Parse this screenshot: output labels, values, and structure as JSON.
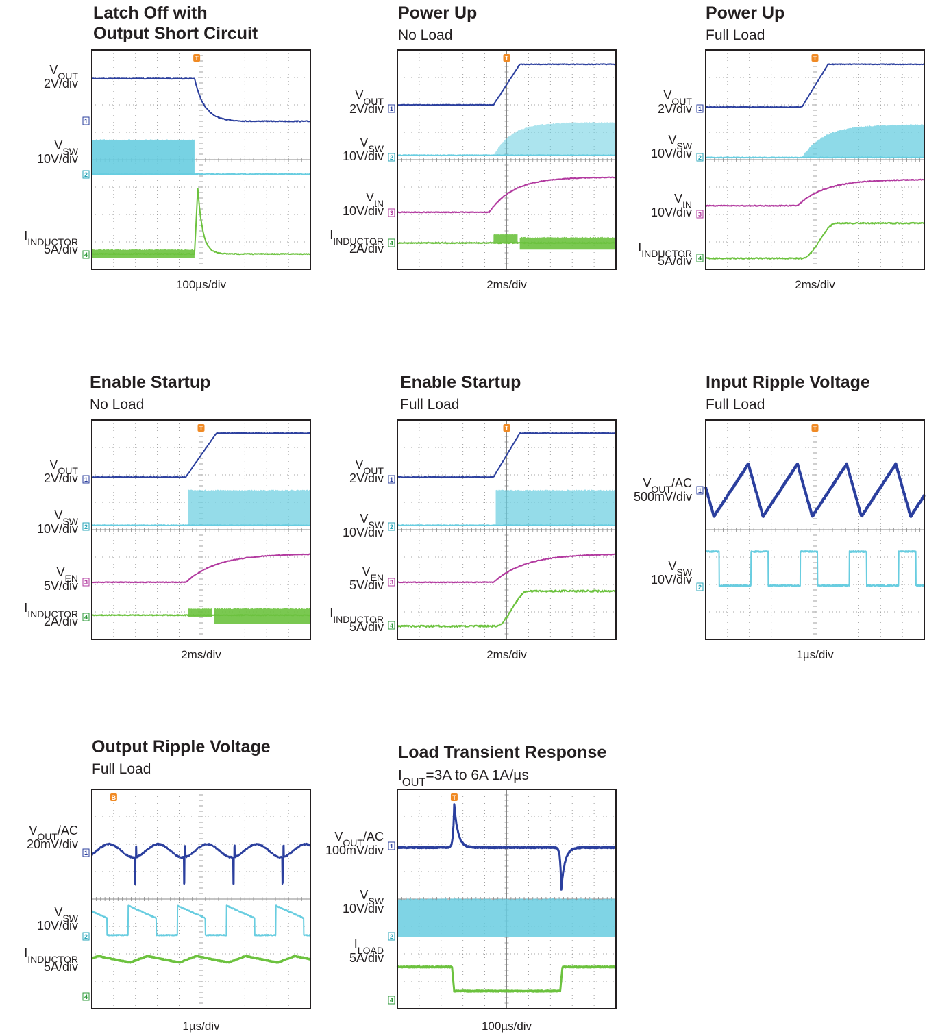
{
  "panels": [
    {
      "title": [
        "Latch Off with",
        "Output Short Circuit"
      ],
      "trigger": "T",
      "timebase": "100µs/div",
      "channels": [
        {
          "name": "V",
          "sub": "OUT",
          "scale": "2V/div",
          "ch": "1"
        },
        {
          "name": "V",
          "sub": "SW",
          "scale": "10V/div",
          "ch": "2"
        },
        {
          "name": "I",
          "sub": "INDUCTOR",
          "scale": "5A/div",
          "ch": "4"
        }
      ]
    },
    {
      "title": [
        "Power Up"
      ],
      "subtitle": [
        "No Load"
      ],
      "trigger": "T",
      "timebase": "2ms/div",
      "channels": [
        {
          "name": "V",
          "sub": "OUT",
          "scale": "2V/div",
          "ch": "1"
        },
        {
          "name": "V",
          "sub": "SW",
          "scale": "10V/div",
          "ch": "2"
        },
        {
          "name": "V",
          "sub": "IN",
          "scale": "10V/div",
          "ch": "3"
        },
        {
          "name": "I",
          "sub": "INDUCTOR",
          "scale": "2A/div",
          "ch": "4"
        }
      ]
    },
    {
      "title": [
        "Power Up"
      ],
      "subtitle": [
        "Full Load"
      ],
      "trigger": "T",
      "timebase": "2ms/div",
      "channels": [
        {
          "name": "V",
          "sub": "OUT",
          "scale": "2V/div",
          "ch": "1"
        },
        {
          "name": "V",
          "sub": "SW",
          "scale": "10V/div",
          "ch": "2"
        },
        {
          "name": "V",
          "sub": "IN",
          "scale": "10V/div",
          "ch": "3"
        },
        {
          "name": "I",
          "sub": "INDUCTOR",
          "scale": "5A/div",
          "ch": "4"
        }
      ]
    },
    {
      "title": [
        "Enable Startup"
      ],
      "subtitle": [
        "No Load"
      ],
      "trigger": "T",
      "timebase": "2ms/div",
      "channels": [
        {
          "name": "V",
          "sub": "OUT",
          "scale": "2V/div",
          "ch": "1"
        },
        {
          "name": "V",
          "sub": "SW",
          "scale": "10V/div",
          "ch": "2"
        },
        {
          "name": "V",
          "sub": "EN",
          "scale": "5V/div",
          "ch": "3"
        },
        {
          "name": "I",
          "sub": "INDUCTOR",
          "scale": "2A/div",
          "ch": "4"
        }
      ]
    },
    {
      "title": [
        "Enable Startup"
      ],
      "subtitle": [
        "Full Load"
      ],
      "trigger": "T",
      "timebase": "2ms/div",
      "channels": [
        {
          "name": "V",
          "sub": "OUT",
          "scale": "2V/div",
          "ch": "1"
        },
        {
          "name": "V",
          "sub": "SW",
          "scale": "10V/div",
          "ch": "2"
        },
        {
          "name": "V",
          "sub": "EN",
          "scale": "5V/div",
          "ch": "3"
        },
        {
          "name": "I",
          "sub": "INDUCTOR",
          "scale": "5A/div",
          "ch": "4"
        }
      ]
    },
    {
      "title": [
        "Input Ripple Voltage"
      ],
      "subtitle": [
        "Full Load"
      ],
      "trigger": "T",
      "timebase": "1µs/div",
      "channels": [
        {
          "name": "V",
          "sub": "OUT",
          "suffix": "/AC",
          "scale": "500mV/div",
          "ch": "1"
        },
        {
          "name": "V",
          "sub": "SW",
          "scale": "10V/div",
          "ch": "2"
        }
      ]
    },
    {
      "title": [
        "Output Ripple Voltage"
      ],
      "subtitle": [
        "Full Load"
      ],
      "trigger": "B",
      "timebase": "1µs/div",
      "channels": [
        {
          "name": "V",
          "sub": "OUT",
          "suffix": "/AC",
          "scale": "20mV/div",
          "ch": "1"
        },
        {
          "name": "V",
          "sub": "SW",
          "scale": "10V/div",
          "ch": "2"
        },
        {
          "name": "I",
          "sub": "INDUCTOR",
          "scale": "5A/div",
          "ch": "4"
        }
      ]
    },
    {
      "title": [
        "Load Transient Response"
      ],
      "subtitle": [
        {
          "name": "I",
          "sub": "OUT",
          "suffix": "=3A to 6A 1A/µs"
        }
      ],
      "trigger": "T",
      "timebase": "100µs/div",
      "channels": [
        {
          "name": "V",
          "sub": "OUT",
          "suffix": "/AC",
          "scale": "100mV/div",
          "ch": "1"
        },
        {
          "name": "V",
          "sub": "SW",
          "scale": "10V/div",
          "ch": "2"
        },
        {
          "name": "I",
          "sub": "LOAD",
          "scale": "5A/div",
          "ch": "4"
        }
      ]
    }
  ]
}
